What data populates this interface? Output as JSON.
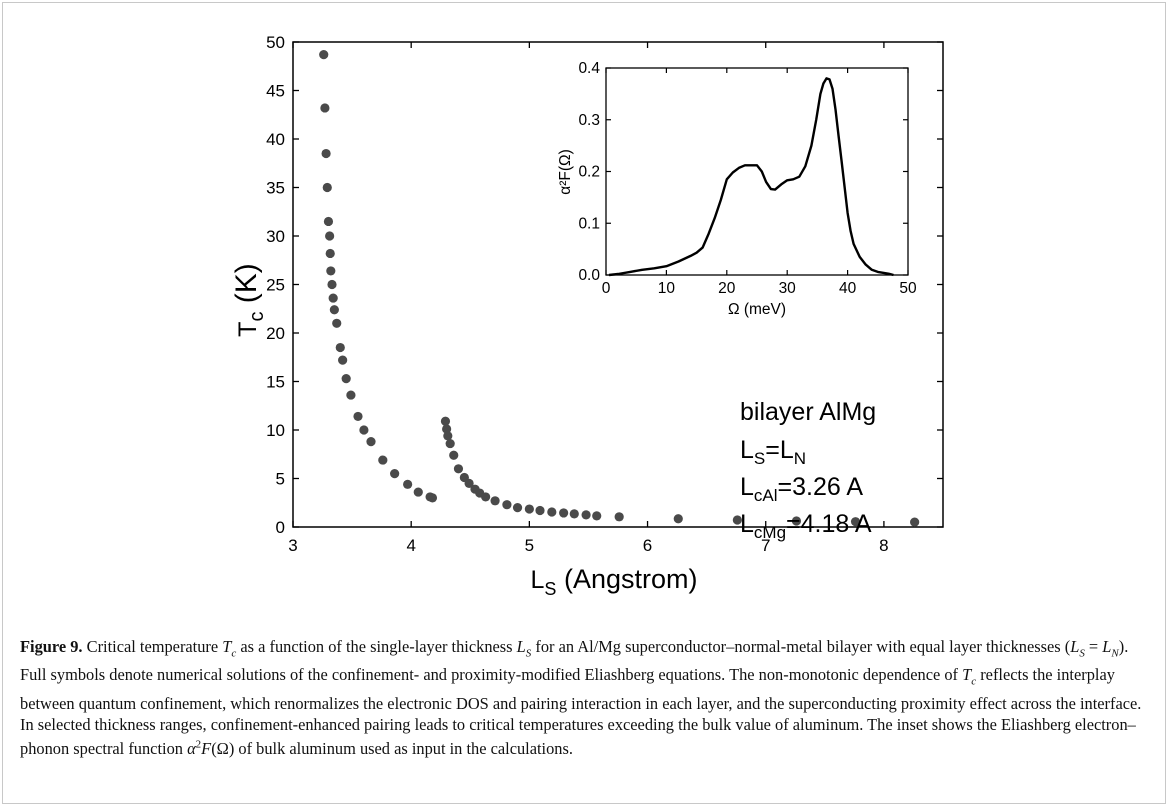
{
  "caption": {
    "label": "Figure 9.",
    "text": "Critical temperature T_c as a function of the single-layer thickness L_S for an Al/Mg superconductor–normal-metal bilayer with equal layer thicknesses (L_S = L_N). Full symbols denote numerical solutions of the confinement- and proximity-modified Eliashberg equations. The non-monotonic dependence of T_c reflects the interplay between quantum confinement, which renormalizes the electronic DOS and pairing interaction in each layer, and the superconducting proximity effect across the interface. In selected thickness ranges, confinement-enhanced pairing leads to critical temperatures exceeding the bulk value of aluminum. The inset shows the Eliashberg electron–phonon spectral function α²F(Ω) of bulk aluminum used as input in the calculations.",
    "segments": [
      "Critical temperature ",
      "T",
      "c",
      " as a function of the single-layer thickness ",
      "L",
      "S",
      " for an Al/Mg superconductor–normal-metal bilayer with equal layer thicknesses (",
      "L",
      "S",
      " = ",
      "L",
      "N",
      "). Full symbols denote numerical solutions of the confinement- and proximity-modified Eliashberg equations. The non-monotonic dependence of ",
      "T",
      "c",
      " reflects the interplay between quantum confinement, which renormalizes the electronic DOS and pairing interaction in each layer, and the superconducting proximity effect across the interface. In selected thickness ranges, confinement-enhanced pairing leads to critical temperatures exceeding the bulk value of aluminum. The inset shows the Eliashberg electron–phonon spectral function ",
      "α",
      "2",
      "F",
      "(Ω)",
      " of bulk aluminum used as input in the calculations."
    ]
  },
  "chart_data": [
    {
      "type": "scatter",
      "xlabel": "L",
      "xlabel_sub": "S",
      "xlabel_units": "(Angstrom)",
      "ylabel": "T",
      "ylabel_sub": "c",
      "ylabel_units": "(K)",
      "xlim": [
        3,
        8.5
      ],
      "ylim": [
        0,
        50
      ],
      "xticks": [
        3,
        4,
        5,
        6,
        7,
        8
      ],
      "yticks": [
        0,
        5,
        10,
        15,
        20,
        25,
        30,
        35,
        40,
        45,
        50
      ],
      "marker_color": "#4a4a4a",
      "series": [
        {
          "points": [
            [
              3.26,
              48.7
            ],
            [
              3.27,
              43.2
            ],
            [
              3.28,
              38.5
            ],
            [
              3.29,
              35.0
            ],
            [
              3.3,
              31.5
            ],
            [
              3.31,
              30.0
            ],
            [
              3.315,
              28.2
            ],
            [
              3.32,
              26.4
            ],
            [
              3.33,
              25.0
            ],
            [
              3.34,
              23.6
            ],
            [
              3.35,
              22.4
            ],
            [
              3.37,
              21.0
            ],
            [
              3.4,
              18.5
            ],
            [
              3.42,
              17.2
            ],
            [
              3.45,
              15.3
            ],
            [
              3.49,
              13.6
            ],
            [
              3.55,
              11.4
            ],
            [
              3.6,
              10.0
            ],
            [
              3.66,
              8.8
            ],
            [
              3.76,
              6.9
            ],
            [
              3.86,
              5.5
            ],
            [
              3.97,
              4.4
            ],
            [
              4.06,
              3.6
            ],
            [
              4.16,
              3.1
            ],
            [
              4.18,
              3.0
            ],
            [
              4.29,
              10.9
            ],
            [
              4.3,
              10.1
            ],
            [
              4.31,
              9.4
            ],
            [
              4.33,
              8.6
            ],
            [
              4.36,
              7.4
            ],
            [
              4.4,
              6.0
            ],
            [
              4.45,
              5.1
            ],
            [
              4.49,
              4.5
            ],
            [
              4.54,
              3.9
            ],
            [
              4.58,
              3.5
            ],
            [
              4.63,
              3.1
            ],
            [
              4.71,
              2.7
            ],
            [
              4.81,
              2.3
            ],
            [
              4.9,
              2.0
            ],
            [
              5.0,
              1.85
            ],
            [
              5.09,
              1.7
            ],
            [
              5.19,
              1.55
            ],
            [
              5.29,
              1.45
            ],
            [
              5.38,
              1.35
            ],
            [
              5.48,
              1.25
            ],
            [
              5.57,
              1.15
            ],
            [
              5.76,
              1.05
            ],
            [
              6.26,
              0.85
            ],
            [
              6.76,
              0.72
            ],
            [
              7.26,
              0.62
            ],
            [
              7.76,
              0.55
            ],
            [
              8.26,
              0.5
            ]
          ]
        }
      ],
      "annotations": [
        {
          "text": "bilayer AlMg"
        },
        {
          "text": "L",
          "sub": "S",
          "tail": "=L",
          "tail_sub": "N"
        },
        {
          "text": "L",
          "sub": "cAl",
          "tail": "=3.26 A"
        },
        {
          "text": "L",
          "sub": "cMg",
          "tail": "=4.18 A"
        }
      ]
    },
    {
      "type": "line",
      "xlabel": "Ω  (meV)",
      "ylabel": "α²F(Ω)",
      "xlim": [
        0,
        50
      ],
      "ylim": [
        0,
        0.4
      ],
      "xticks": [
        0,
        10,
        20,
        30,
        40,
        50
      ],
      "yticks": [
        0.0,
        0.1,
        0.2,
        0.3,
        0.4
      ],
      "ytick_labels": [
        "0.0",
        "0.1",
        "0.2",
        "0.3",
        "0.4"
      ],
      "line_color": "#000000",
      "x": [
        0.5,
        2,
        4,
        6,
        8,
        10,
        12,
        14,
        15,
        16,
        17,
        18,
        19,
        20,
        21,
        22,
        23,
        24,
        25,
        25.8,
        26.5,
        27.3,
        28,
        29,
        30,
        31,
        32,
        33,
        34,
        34.8,
        35.5,
        36,
        36.5,
        37,
        37.5,
        38,
        38.5,
        39,
        39.5,
        40,
        40.5,
        41,
        42,
        43,
        44,
        45,
        46,
        47,
        47.6
      ],
      "y": [
        0.0,
        0.002,
        0.006,
        0.01,
        0.013,
        0.017,
        0.026,
        0.037,
        0.043,
        0.053,
        0.08,
        0.11,
        0.145,
        0.185,
        0.198,
        0.207,
        0.212,
        0.212,
        0.212,
        0.2,
        0.18,
        0.166,
        0.165,
        0.175,
        0.183,
        0.185,
        0.19,
        0.21,
        0.25,
        0.3,
        0.35,
        0.37,
        0.38,
        0.378,
        0.36,
        0.32,
        0.27,
        0.22,
        0.17,
        0.12,
        0.085,
        0.06,
        0.035,
        0.02,
        0.01,
        0.006,
        0.004,
        0.002,
        0.0
      ]
    }
  ]
}
